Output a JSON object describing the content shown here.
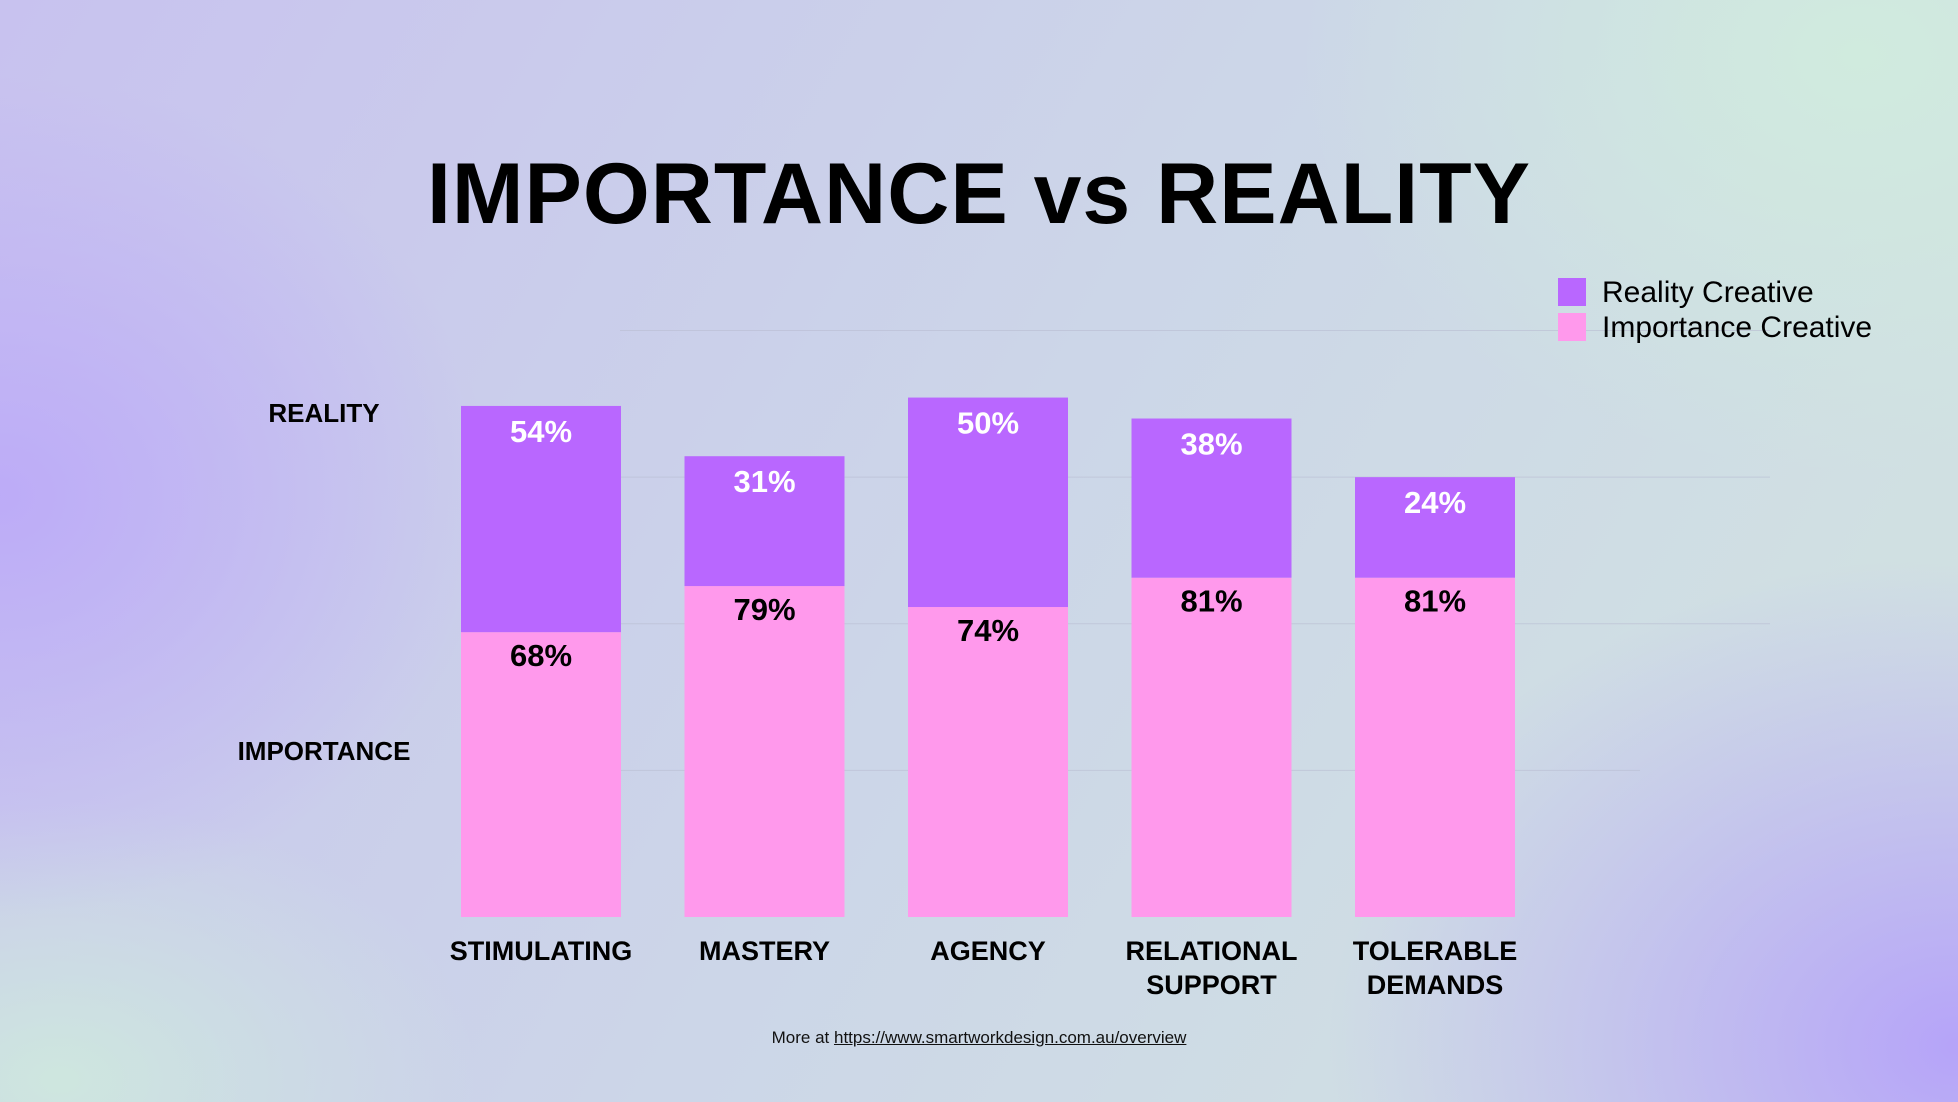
{
  "chart_data": {
    "type": "bar",
    "stacked": true,
    "title": "IMPORTANCE vs REALITY",
    "categories": [
      [
        "STIMULATING"
      ],
      [
        "MASTERY"
      ],
      [
        "AGENCY"
      ],
      [
        "RELATIONAL",
        "SUPPORT"
      ],
      [
        "TOLERABLE",
        "DEMANDS"
      ]
    ],
    "series": [
      {
        "name": "Importance Creative",
        "color": "#ff99ec",
        "label_color": "#000000",
        "values": [
          68,
          79,
          74,
          81,
          81
        ]
      },
      {
        "name": "Reality Creative",
        "color": "#b967ff",
        "label_color": "#ffffff",
        "values": [
          54,
          31,
          50,
          38,
          24
        ]
      }
    ],
    "legend_order": [
      "Reality Creative",
      "Importance Creative"
    ],
    "row_labels": [
      "REALITY",
      "IMPORTANCE"
    ],
    "ylim": [
      0,
      150
    ],
    "grid": true,
    "legend": "top-right"
  },
  "footer": {
    "prefix": "More at",
    "link_text": "https://www.smartworkdesign.com.au/overview"
  }
}
